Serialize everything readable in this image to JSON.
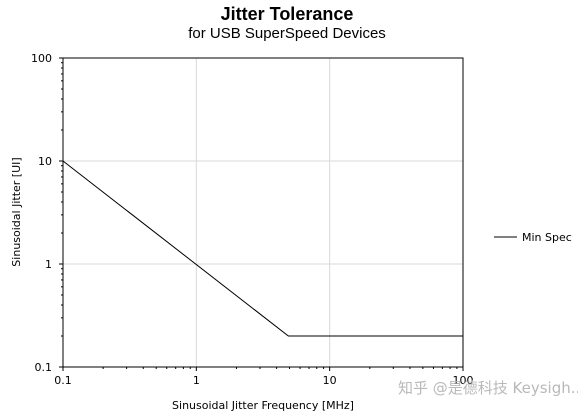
{
  "chart_data": {
    "type": "line",
    "title": "Jitter Tolerance",
    "subtitle": "for USB SuperSpeed Devices",
    "xlabel": "Sinusoidal Jitter Frequency [MHz]",
    "ylabel": "Sinusoidal Jitter  [UI]",
    "x_scale": "log",
    "y_scale": "log",
    "xlim": [
      0.1,
      100
    ],
    "ylim": [
      0.1,
      100
    ],
    "x_ticks": [
      0.1,
      1,
      10,
      100
    ],
    "x_tick_labels": [
      "0.1",
      "1",
      "10",
      "100"
    ],
    "y_ticks": [
      0.1,
      1,
      10,
      100
    ],
    "y_tick_labels": [
      "0.1",
      "1",
      "10",
      "100"
    ],
    "grid": true,
    "legend_position": "right",
    "series": [
      {
        "name": "Min Spec",
        "color": "#000000",
        "x": [
          0.1,
          4.9,
          100
        ],
        "y": [
          10,
          0.2,
          0.2
        ]
      }
    ]
  },
  "watermark": "知乎 @是德科技 Keysigh..."
}
